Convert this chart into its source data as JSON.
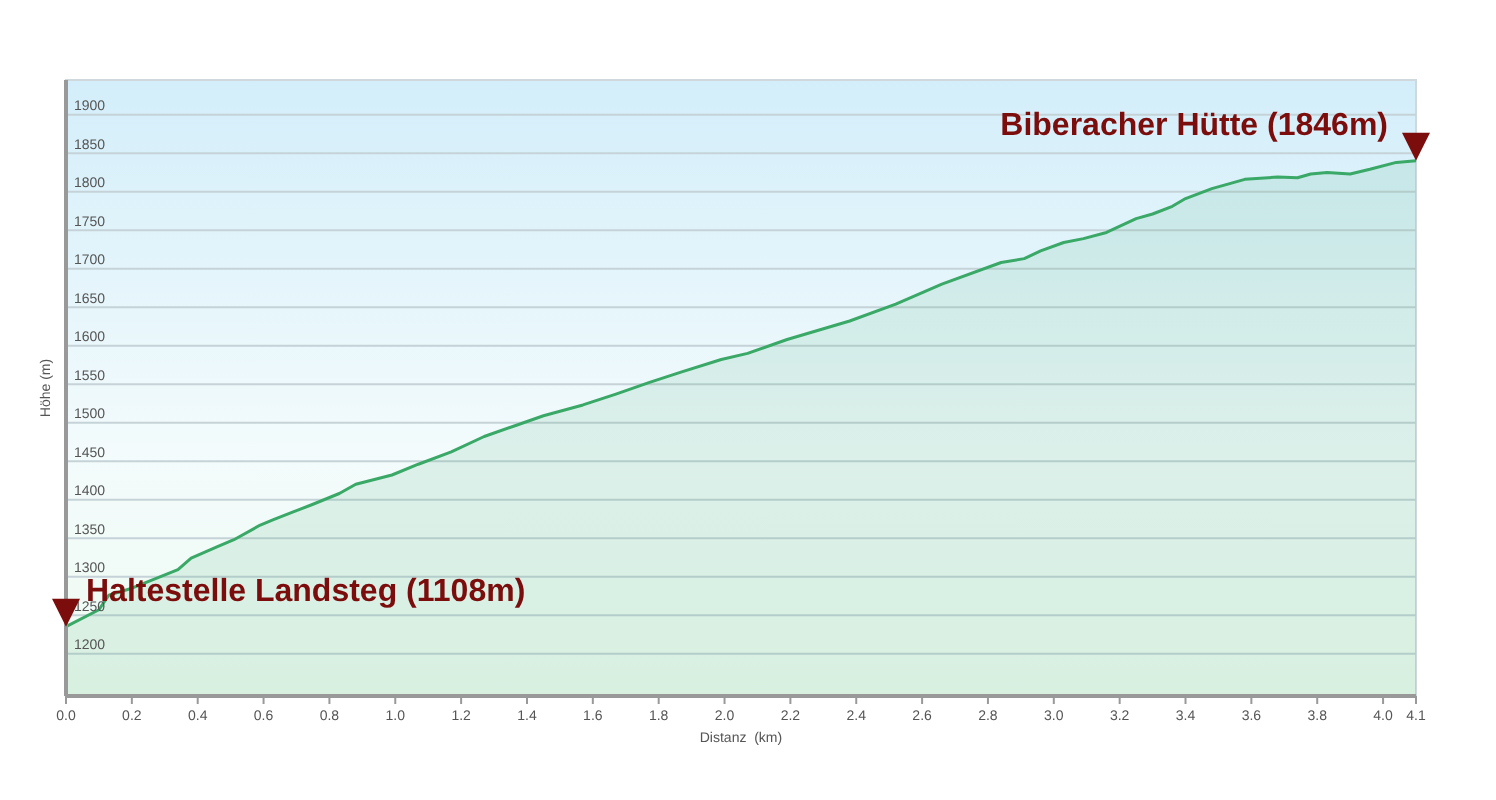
{
  "chart_data": {
    "type": "area",
    "xlabel": "Distanz  (km)",
    "ylabel": "Höhe (m)",
    "xlim": [
      0,
      4.1
    ],
    "xticks": [
      {
        "value": 0,
        "label": "0.0"
      },
      {
        "value": 0.2,
        "label": "0.2"
      },
      {
        "value": 0.4,
        "label": "0.4"
      },
      {
        "value": 0.6,
        "label": "0.6"
      },
      {
        "value": 0.8,
        "label": "0.8"
      },
      {
        "value": 1,
        "label": "1.0"
      },
      {
        "value": 1.2,
        "label": "1.2"
      },
      {
        "value": 1.4,
        "label": "1.4"
      },
      {
        "value": 1.6,
        "label": "1.6"
      },
      {
        "value": 1.8,
        "label": "1.8"
      },
      {
        "value": 2,
        "label": "2.0"
      },
      {
        "value": 2.2,
        "label": "2.2"
      },
      {
        "value": 2.4,
        "label": "2.4"
      },
      {
        "value": 2.6,
        "label": "2.6"
      },
      {
        "value": 2.8,
        "label": "2.8"
      },
      {
        "value": 3,
        "label": "3.0"
      },
      {
        "value": 3.2,
        "label": "3.2"
      },
      {
        "value": 3.4,
        "label": "3.4"
      },
      {
        "value": 3.6,
        "label": "3.6"
      },
      {
        "value": 3.8,
        "label": "3.8"
      },
      {
        "value": 4,
        "label": "4.0"
      },
      {
        "value": 4.1,
        "label": "4.1"
      }
    ],
    "ylim": [
      1145,
      1945
    ],
    "yticks": [
      1200,
      1250,
      1300,
      1350,
      1400,
      1450,
      1500,
      1550,
      1600,
      1650,
      1700,
      1750,
      1800,
      1850,
      1900
    ],
    "grid": "y",
    "series": [
      {
        "color": "#3aa867",
        "x": [
          0,
          0.1,
          0.13,
          0.2,
          0.34,
          0.38,
          0.46,
          0.51,
          0.59,
          0.63,
          0.69,
          0.75,
          0.83,
          0.88,
          0.99,
          1.07,
          1.17,
          1.27,
          1.37,
          1.45,
          1.57,
          1.67,
          1.77,
          1.87,
          1.99,
          2.07,
          2.19,
          2.38,
          2.52,
          2.66,
          2.84,
          2.91,
          2.96,
          3.03,
          3.09,
          3.16,
          3.25,
          3.3,
          3.36,
          3.4,
          3.48,
          3.58,
          3.68,
          3.74,
          3.78,
          3.83,
          3.9,
          3.96,
          4.04,
          4.1
        ],
        "values": [
          1235,
          1257,
          1276,
          1285,
          1309,
          1324,
          1339,
          1348,
          1367,
          1374,
          1384,
          1394,
          1408,
          1420,
          1432,
          1446,
          1462,
          1482,
          1497,
          1509,
          1523,
          1537,
          1552,
          1566,
          1582,
          1590,
          1608,
          1632,
          1654,
          1680,
          1708,
          1713,
          1723,
          1734,
          1739,
          1747,
          1765,
          1771,
          1781,
          1791,
          1804,
          1816,
          1819,
          1818,
          1823,
          1825,
          1823,
          1829,
          1838,
          1840
        ]
      }
    ],
    "annotations": [
      {
        "text": "Haltestelle Landsteg (1108m)",
        "x": 0,
        "y": 1235
      },
      {
        "text": "Biberacher Hütte (1846m)",
        "x": 4.1,
        "y": 1840
      }
    ]
  }
}
